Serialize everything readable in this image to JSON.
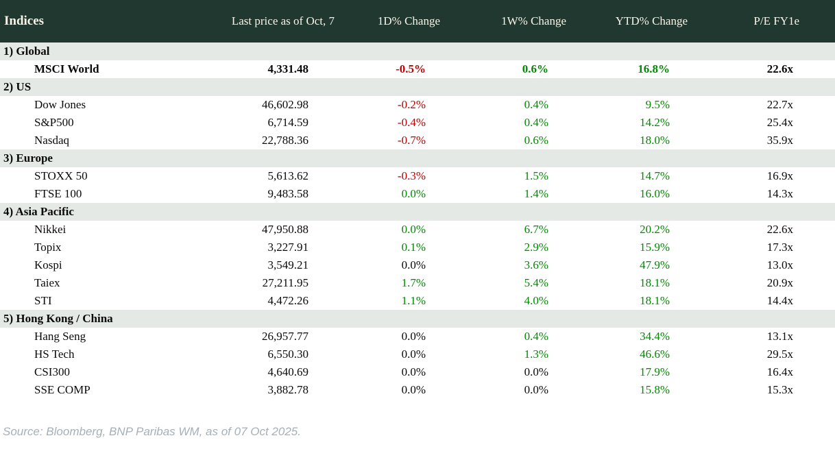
{
  "title": "Indices",
  "source_note": "Source: Bloomberg, BNP Paribas WM, as of 07 Oct 2025.",
  "colors": {
    "header_bg": "#20382f",
    "header_text": "#f8f4e9",
    "section_row_bg": "#e4e9e5",
    "positive": "#008a00",
    "negative": "#c00000",
    "neutral": "#0a0a0a",
    "source_text": "#a6b0b6"
  },
  "chart_data": {
    "type": "table",
    "title": "Indices",
    "columns": [
      "Indices",
      "Last price as of Oct, 7",
      "1D% Change",
      "1W% Change",
      "YTD% Change",
      "P/E FY1e"
    ],
    "sections": [
      {
        "label": "1) Global",
        "rows": [
          {
            "name": "MSCI World",
            "bold": true,
            "price": "4,331.48",
            "d1": {
              "v": "-0.5%",
              "c": "negative"
            },
            "w1": {
              "v": "0.6%",
              "c": "positive"
            },
            "ytd": {
              "v": "16.8%",
              "c": "positive"
            },
            "pe": "22.6x"
          }
        ]
      },
      {
        "label": "2) US",
        "rows": [
          {
            "name": "Dow Jones",
            "price": "46,602.98",
            "d1": {
              "v": "-0.2%",
              "c": "negative"
            },
            "w1": {
              "v": "0.4%",
              "c": "positive"
            },
            "ytd": {
              "v": "9.5%",
              "c": "positive"
            },
            "pe": "22.7x"
          },
          {
            "name": "S&P500",
            "price": "6,714.59",
            "d1": {
              "v": "-0.4%",
              "c": "negative"
            },
            "w1": {
              "v": "0.4%",
              "c": "positive"
            },
            "ytd": {
              "v": "14.2%",
              "c": "positive"
            },
            "pe": "25.4x"
          },
          {
            "name": "Nasdaq",
            "price": "22,788.36",
            "d1": {
              "v": "-0.7%",
              "c": "negative"
            },
            "w1": {
              "v": "0.6%",
              "c": "positive"
            },
            "ytd": {
              "v": "18.0%",
              "c": "positive"
            },
            "pe": "35.9x"
          }
        ]
      },
      {
        "label": "3) Europe",
        "rows": [
          {
            "name": "STOXX 50",
            "price": "5,613.62",
            "d1": {
              "v": "-0.3%",
              "c": "negative"
            },
            "w1": {
              "v": "1.5%",
              "c": "positive"
            },
            "ytd": {
              "v": "14.7%",
              "c": "positive"
            },
            "pe": "16.9x"
          },
          {
            "name": "FTSE 100",
            "price": "9,483.58",
            "d1": {
              "v": "0.0%",
              "c": "positive"
            },
            "w1": {
              "v": "1.4%",
              "c": "positive"
            },
            "ytd": {
              "v": "16.0%",
              "c": "positive"
            },
            "pe": "14.3x"
          }
        ]
      },
      {
        "label": "4) Asia Pacific",
        "rows": [
          {
            "name": "Nikkei",
            "price": "47,950.88",
            "d1": {
              "v": "0.0%",
              "c": "positive"
            },
            "w1": {
              "v": "6.7%",
              "c": "positive"
            },
            "ytd": {
              "v": "20.2%",
              "c": "positive"
            },
            "pe": "22.6x"
          },
          {
            "name": "Topix",
            "price": "3,227.91",
            "d1": {
              "v": "0.1%",
              "c": "positive"
            },
            "w1": {
              "v": "2.9%",
              "c": "positive"
            },
            "ytd": {
              "v": "15.9%",
              "c": "positive"
            },
            "pe": "17.3x"
          },
          {
            "name": "Kospi",
            "price": "3,549.21",
            "d1": {
              "v": "0.0%",
              "c": "neutral"
            },
            "w1": {
              "v": "3.6%",
              "c": "positive"
            },
            "ytd": {
              "v": "47.9%",
              "c": "positive"
            },
            "pe": "13.0x"
          },
          {
            "name": "Taiex",
            "price": "27,211.95",
            "d1": {
              "v": "1.7%",
              "c": "positive"
            },
            "w1": {
              "v": "5.4%",
              "c": "positive"
            },
            "ytd": {
              "v": "18.1%",
              "c": "positive"
            },
            "pe": "20.9x"
          },
          {
            "name": "STI",
            "price": "4,472.26",
            "d1": {
              "v": "1.1%",
              "c": "positive"
            },
            "w1": {
              "v": "4.0%",
              "c": "positive"
            },
            "ytd": {
              "v": "18.1%",
              "c": "positive"
            },
            "pe": "14.4x"
          }
        ]
      },
      {
        "label": "5) Hong Kong / China",
        "rows": [
          {
            "name": "Hang Seng",
            "price": "26,957.77",
            "d1": {
              "v": "0.0%",
              "c": "neutral"
            },
            "w1": {
              "v": "0.4%",
              "c": "positive"
            },
            "ytd": {
              "v": "34.4%",
              "c": "positive"
            },
            "pe": "13.1x"
          },
          {
            "name": "HS Tech",
            "price": "6,550.30",
            "d1": {
              "v": "0.0%",
              "c": "neutral"
            },
            "w1": {
              "v": "1.3%",
              "c": "positive"
            },
            "ytd": {
              "v": "46.6%",
              "c": "positive"
            },
            "pe": "29.5x"
          },
          {
            "name": "CSI300",
            "price": "4,640.69",
            "d1": {
              "v": "0.0%",
              "c": "neutral"
            },
            "w1": {
              "v": "0.0%",
              "c": "neutral"
            },
            "ytd": {
              "v": "17.9%",
              "c": "positive"
            },
            "pe": "16.4x"
          },
          {
            "name": "SSE COMP",
            "price": "3,882.78",
            "d1": {
              "v": "0.0%",
              "c": "neutral"
            },
            "w1": {
              "v": "0.0%",
              "c": "neutral"
            },
            "ytd": {
              "v": "15.8%",
              "c": "positive"
            },
            "pe": "15.3x"
          }
        ]
      }
    ]
  }
}
